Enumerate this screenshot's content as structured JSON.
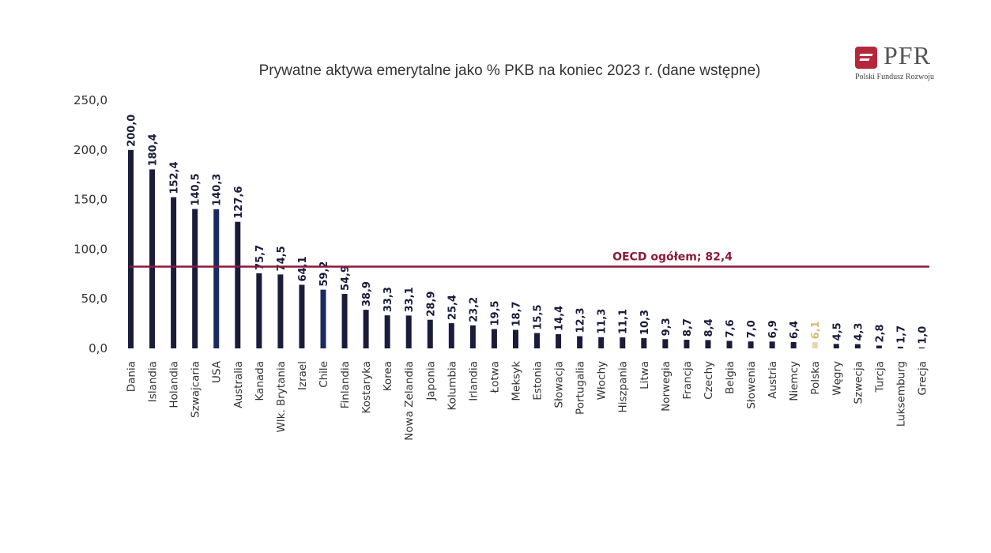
{
  "logo": {
    "name": "PFR",
    "subtitle": "Polski Fundusz Rozwoju"
  },
  "chart_data": {
    "type": "bar",
    "title": "Prywatne aktywa emerytalne jako % PKB na koniec 2023 r. (dane wstępne)",
    "xlabel": "",
    "ylabel": "",
    "ylim": [
      0,
      250
    ],
    "yticks": [
      "0,0",
      "50,0",
      "100,0",
      "150,0",
      "200,0",
      "250,0"
    ],
    "grid": false,
    "categories": [
      "Dania",
      "Islandia",
      "Holandia",
      "Szwajcaria",
      "USA",
      "Australia",
      "Kanada",
      "Wlk. Brytania",
      "Izrael",
      "Chile",
      "Finlandia",
      "Kostaryka",
      "Korea",
      "Nowa Zelandia",
      "Japonia",
      "Kolumbia",
      "Irlandia",
      "Łotwa",
      "Meksyk",
      "Estonia",
      "Słowacja",
      "Portugalia",
      "Włochy",
      "Hiszpania",
      "Litwa",
      "Norwegia",
      "Francja",
      "Czechy",
      "Belgia",
      "Słowenia",
      "Austria",
      "Niemcy",
      "Polska",
      "Węgry",
      "Szwecja",
      "Turcja",
      "Luksemburg",
      "Grecja"
    ],
    "values": [
      200.0,
      180.4,
      152.4,
      140.5,
      140.3,
      127.6,
      75.7,
      74.5,
      64.1,
      59.2,
      54.9,
      38.9,
      33.3,
      33.1,
      28.9,
      25.4,
      23.2,
      19.5,
      18.7,
      15.5,
      14.4,
      12.3,
      11.3,
      11.1,
      10.3,
      9.3,
      8.7,
      8.4,
      7.6,
      7.0,
      6.9,
      6.4,
      6.1,
      4.5,
      4.3,
      2.8,
      1.7,
      1.0
    ],
    "value_labels": [
      "200,0",
      "180,4",
      "152,4",
      "140,5",
      "140,3",
      "127,6",
      "75,7",
      "74,5",
      "64,1",
      "59,2",
      "54,9",
      "38,9",
      "33,3",
      "33,1",
      "28,9",
      "25,4",
      "23,2",
      "19,5",
      "18,7",
      "15,5",
      "14,4",
      "12,3",
      "11,3",
      "11,1",
      "10,3",
      "9,3",
      "8,7",
      "8,4",
      "7,6",
      "7,0",
      "6,9",
      "6,4",
      "6,1",
      "4,5",
      "4,3",
      "2,8",
      "1,7",
      "1,0"
    ],
    "highlight_category": "Polska",
    "reference_line": {
      "label": "OECD ogółem; 82,4",
      "value": 82.4
    },
    "colors": {
      "bar": "#1b1c3c",
      "bar_alt": "#1a2a5e",
      "highlight": "#e8d4a8",
      "highlight_label": "#d9b97a",
      "reference_line": "#8b1a3a"
    }
  }
}
